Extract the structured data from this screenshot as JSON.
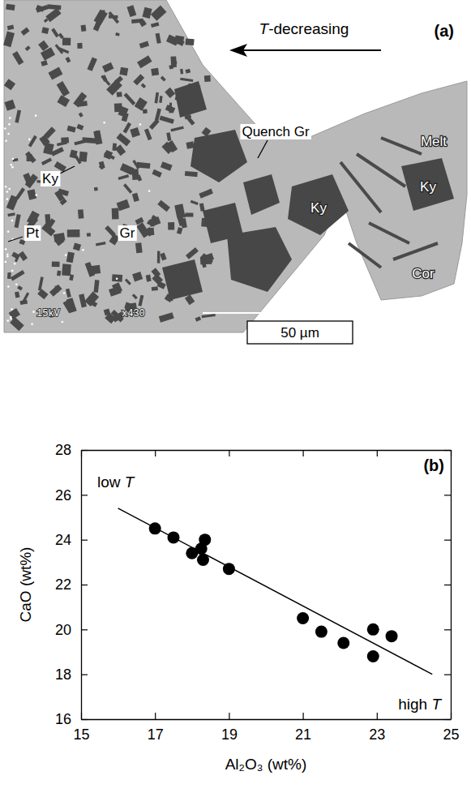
{
  "micrograph": {
    "panel_label": "(a)",
    "arrow_label": "T-decreasing",
    "phase_labels": [
      "Ky",
      "Pt",
      "Gr",
      "Quench Gr",
      "Ky",
      "Melt",
      "Ky",
      "Cor"
    ],
    "scale_bar": "50 µm",
    "databar": [
      "15kV",
      "x430"
    ]
  },
  "chart_data": {
    "type": "scatter",
    "title": "(b)",
    "x_label": "Al₂O₃ (wt%)",
    "y_label": "CaO (wt%)",
    "annotations": [
      "low T",
      "high T"
    ],
    "x": [
      17.0,
      17.5,
      18.0,
      18.25,
      18.3,
      18.35,
      19.0,
      21.0,
      21.5,
      22.1,
      22.9,
      22.9,
      23.4
    ],
    "values": [
      24.5,
      24.1,
      23.4,
      23.6,
      23.1,
      24.0,
      22.7,
      20.5,
      19.9,
      19.4,
      20.0,
      18.8,
      19.7
    ],
    "fit": {
      "x": [
        16,
        24.5
      ],
      "values": [
        25.4,
        18.0
      ]
    },
    "marker": "circle",
    "color": "#000000",
    "xlim": [
      15,
      25
    ],
    "xticks": [
      15,
      17,
      19,
      21,
      23,
      25
    ],
    "ylim": [
      16,
      28
    ],
    "yticks": [
      16,
      18,
      20,
      22,
      24,
      26,
      28
    ],
    "grid": false
  }
}
